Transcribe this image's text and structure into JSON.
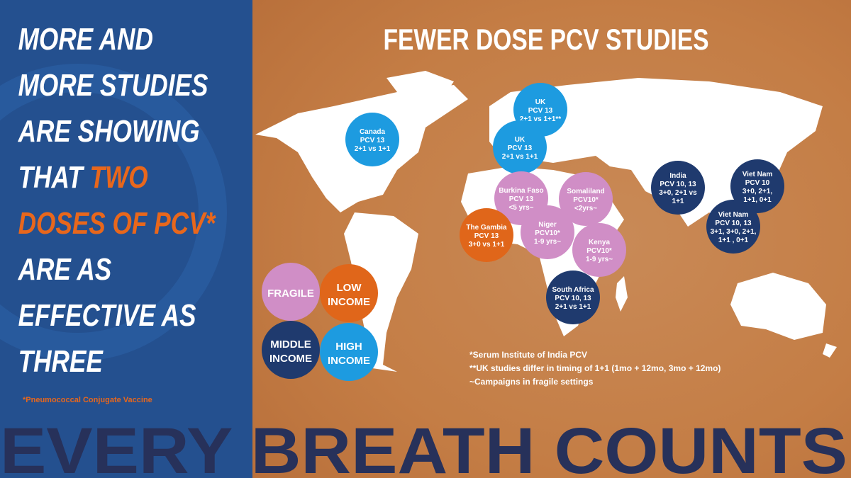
{
  "headline": [
    [
      "MORE AND"
    ],
    [
      "MORE STUDIES"
    ],
    [
      "ARE SHOWING"
    ],
    [
      "THAT",
      "TWO"
    ],
    [
      "DOSES OF PCV*"
    ],
    [
      "ARE AS"
    ],
    [
      "EFFECTIVE AS"
    ],
    [
      "THREE"
    ]
  ],
  "footnote": "*Pneumococcal Conjugate Vaccine",
  "title": "FEWER DOSE PCV STUDIES",
  "studies": [
    {
      "lines": [
        "UK",
        "PCV 13",
        "2+1 vs 1+1**"
      ],
      "color": "#1d9be0"
    },
    {
      "lines": [
        "Canada",
        "PCV 13",
        "2+1 vs 1+1"
      ],
      "color": "#1d9be0"
    },
    {
      "lines": [
        "UK",
        "PCV 13",
        "2+1 vs 1+1"
      ],
      "color": "#1d9be0"
    },
    {
      "lines": [
        "Burkina Faso",
        "PCV 13",
        "<5 yrs~"
      ],
      "color": "#d08ec6"
    },
    {
      "lines": [
        "Somaliland",
        "PCV10*",
        "<2yrs~"
      ],
      "color": "#d08ec6"
    },
    {
      "lines": [
        "The Gambia",
        "PCV 13",
        "3+0 vs 1+1"
      ],
      "color": "#e0661a"
    },
    {
      "lines": [
        "Niger",
        "PCV10*",
        "1-9 yrs~"
      ],
      "color": "#d08ec6"
    },
    {
      "lines": [
        "Kenya",
        "PCV10*",
        "1-9 yrs~"
      ],
      "color": "#d08ec6"
    },
    {
      "lines": [
        "South Africa",
        "PCV 10, 13",
        "2+1 vs 1+1"
      ],
      "color": "#1f3a6e"
    },
    {
      "lines": [
        "India",
        "PCV 10, 13",
        "3+0, 2+1 vs",
        "1+1"
      ],
      "color": "#1f3a6e"
    },
    {
      "lines": [
        "Viet Nam",
        "PCV 10",
        "3+0, 2+1,",
        "1+1, 0+1"
      ],
      "color": "#1f3a6e"
    },
    {
      "lines": [
        "Viet Nam",
        "PCV 10, 13",
        "3+1, 3+0, 2+1,",
        "1+1 , 0+1"
      ],
      "color": "#1f3a6e"
    }
  ],
  "legend": [
    {
      "lines": [
        "FRAGILE"
      ],
      "color": "#d08ec6"
    },
    {
      "lines": [
        "LOW",
        "INCOME"
      ],
      "color": "#e0661a"
    },
    {
      "lines": [
        "MIDDLE",
        "INCOME"
      ],
      "color": "#1f3a6e"
    },
    {
      "lines": [
        "HIGH",
        "INCOME"
      ],
      "color": "#1d9be0"
    }
  ],
  "notes": [
    "*Serum Institute of India PCV",
    "**UK studies differ in timing of 1+1 (1mo + 12mo, 3mo + 12mo)",
    "~Campaigns in fragile settings"
  ],
  "banner": "EVERY BREATH COUNTS"
}
